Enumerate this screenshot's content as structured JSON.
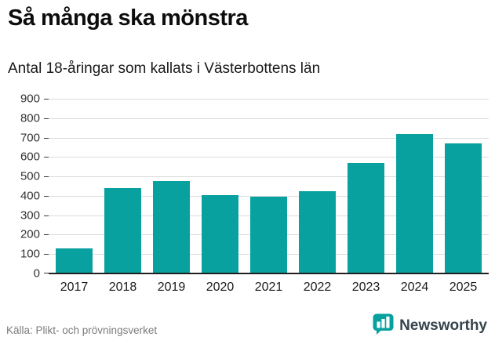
{
  "header": {
    "title": "Så många ska mönstra",
    "subtitle": "Antal 18-åringar som kallats i Västerbottens län"
  },
  "chart_data": {
    "type": "bar",
    "categories": [
      "2017",
      "2018",
      "2019",
      "2020",
      "2021",
      "2022",
      "2023",
      "2024",
      "2025"
    ],
    "values": [
      130,
      440,
      475,
      405,
      395,
      425,
      570,
      720,
      670
    ],
    "title": "Så många ska mönstra",
    "subtitle": "Antal 18-åringar som kallats i Västerbottens län",
    "xlabel": "",
    "ylabel": "",
    "ylim": [
      0,
      900
    ],
    "ytick_step": 100,
    "grid": true,
    "legend": false,
    "bar_color": "#09a1a0"
  },
  "footer": {
    "source": "Källa: Plikt- och prövningsverket",
    "brand": "Newsworthy"
  },
  "colors": {
    "accent": "#09a1a0",
    "gridline": "#dadada",
    "text": "#1a1a1a",
    "muted": "#7b7b7b"
  }
}
